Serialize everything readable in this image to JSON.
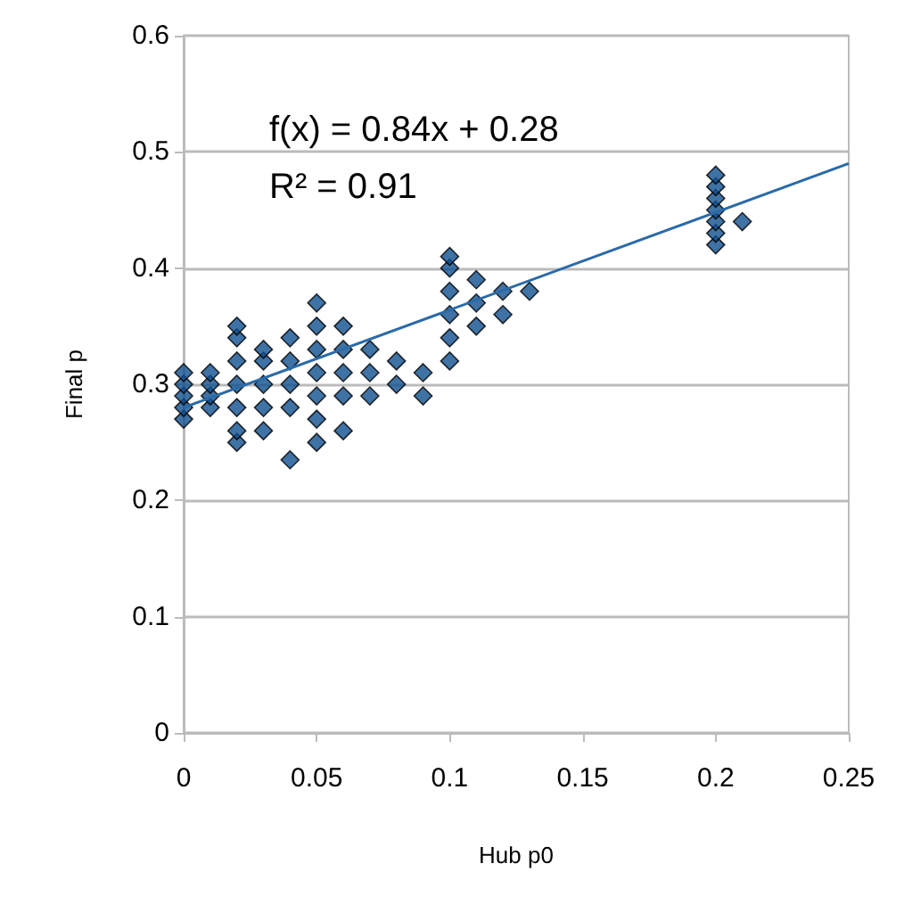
{
  "chart_data": {
    "type": "scatter",
    "xlabel": "Hub p0",
    "ylabel": "Final p",
    "annotations": [
      "f(x) = 0.84x + 0.28",
      "R² = 0.91"
    ],
    "xlim": [
      0,
      0.25
    ],
    "xticks": [
      0,
      0.05,
      0.1,
      0.15,
      0.2,
      0.25
    ],
    "ylim": [
      0,
      0.6
    ],
    "yticks": [
      0,
      0.1,
      0.2,
      0.3,
      0.4,
      0.5,
      0.6
    ],
    "grid": "y",
    "marker": "diamond",
    "series": [
      {
        "color": "#0f4f8f",
        "x": [
          0,
          0,
          0,
          0,
          0,
          0.01,
          0.01,
          0.01,
          0.01,
          0.02,
          0.02,
          0.02,
          0.02,
          0.02,
          0.02,
          0.02,
          0.03,
          0.03,
          0.03,
          0.03,
          0.03,
          0.04,
          0.04,
          0.04,
          0.04,
          0.04,
          0.05,
          0.05,
          0.05,
          0.05,
          0.05,
          0.05,
          0.05,
          0.06,
          0.06,
          0.06,
          0.06,
          0.06,
          0.07,
          0.07,
          0.07,
          0.08,
          0.08,
          0.09,
          0.09,
          0.1,
          0.1,
          0.1,
          0.1,
          0.1,
          0.1,
          0.11,
          0.11,
          0.11,
          0.12,
          0.12,
          0.13,
          0.2,
          0.2,
          0.2,
          0.2,
          0.2,
          0.2,
          0.2,
          0.21
        ],
        "values": [
          0.27,
          0.28,
          0.29,
          0.3,
          0.31,
          0.28,
          0.29,
          0.3,
          0.31,
          0.25,
          0.26,
          0.28,
          0.3,
          0.32,
          0.34,
          0.35,
          0.26,
          0.28,
          0.3,
          0.32,
          0.33,
          0.235,
          0.28,
          0.3,
          0.32,
          0.34,
          0.25,
          0.27,
          0.29,
          0.31,
          0.33,
          0.35,
          0.37,
          0.26,
          0.29,
          0.31,
          0.33,
          0.35,
          0.29,
          0.31,
          0.33,
          0.3,
          0.32,
          0.29,
          0.31,
          0.32,
          0.34,
          0.36,
          0.38,
          0.4,
          0.41,
          0.35,
          0.37,
          0.39,
          0.36,
          0.38,
          0.38,
          0.42,
          0.43,
          0.44,
          0.45,
          0.46,
          0.47,
          0.48,
          0.44
        ]
      },
      {
        "type": "line",
        "color": "#2a6aa8",
        "marker": "none",
        "x": [
          0,
          0.25
        ],
        "values": [
          0.28,
          0.49
        ]
      }
    ]
  }
}
